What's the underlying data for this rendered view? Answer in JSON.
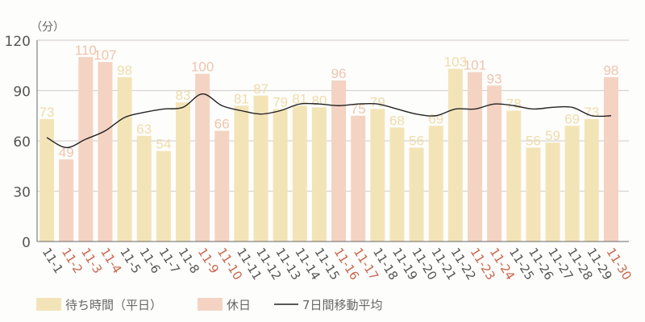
{
  "chart_data": {
    "type": "bar",
    "unit_label": "（分）",
    "categories": [
      "11-1",
      "11-2",
      "11-3",
      "11-4",
      "11-5",
      "11-6",
      "11-7",
      "11-8",
      "11-9",
      "11-10",
      "11-11",
      "11-12",
      "11-13",
      "11-14",
      "11-15",
      "11-16",
      "11-17",
      "11-18",
      "11-19",
      "11-20",
      "11-21",
      "11-22",
      "11-23",
      "11-24",
      "11-25",
      "11-26",
      "11-27",
      "11-28",
      "11-29",
      "11-30"
    ],
    "values": [
      73,
      49,
      110,
      107,
      98,
      63,
      54,
      83,
      100,
      66,
      81,
      87,
      79,
      81,
      80,
      96,
      75,
      79,
      68,
      56,
      69,
      103,
      101,
      93,
      78,
      56,
      59,
      69,
      73,
      98
    ],
    "holiday": [
      false,
      true,
      true,
      true,
      false,
      false,
      false,
      false,
      true,
      true,
      false,
      false,
      false,
      false,
      false,
      true,
      true,
      false,
      false,
      false,
      false,
      false,
      true,
      true,
      false,
      false,
      false,
      false,
      false,
      true
    ],
    "moving_average": [
      62,
      56,
      61,
      66,
      74,
      77,
      79,
      80,
      88,
      81,
      78,
      76,
      78,
      82,
      82,
      81,
      82,
      82,
      79,
      76,
      75,
      79,
      79,
      82,
      81,
      79,
      80,
      80,
      75,
      75
    ],
    "ylim": [
      0,
      120
    ],
    "yticks": [
      0,
      30,
      60,
      90,
      120
    ],
    "grid": true,
    "legend": {
      "placement": "bottom",
      "weekday": "待ち時間（平日）",
      "holiday": "休日",
      "moving_average": "7日間移動平均"
    },
    "colors": {
      "weekday_bar": "#f3e4b8",
      "holiday_bar": "#f4d3c3",
      "weekday_label": "#efdcaa",
      "holiday_label": "#f1c4ae",
      "holiday_tick": "#c8664c",
      "weekday_tick": "#555555",
      "line": "#222222",
      "grid": "#d8d4d4"
    }
  }
}
